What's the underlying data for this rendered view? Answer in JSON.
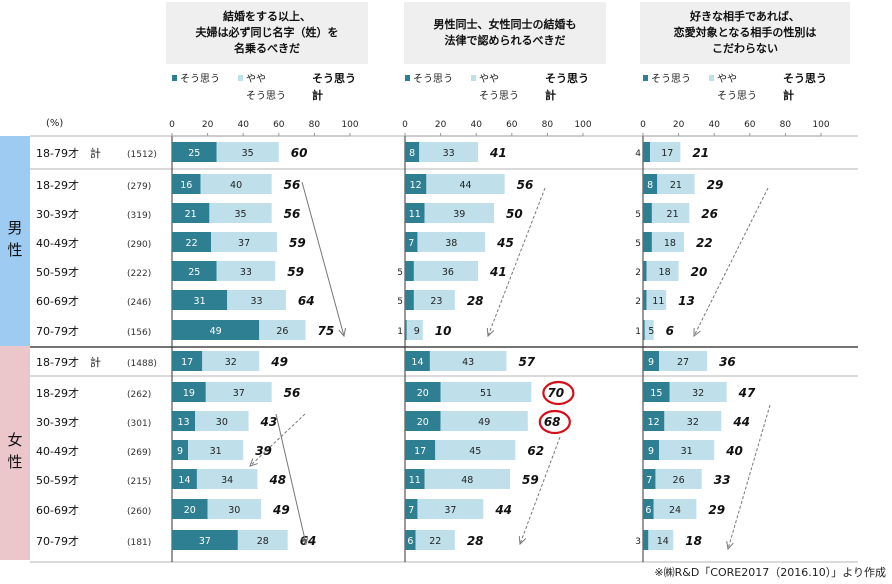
{
  "unit_label": "(%)",
  "source_note": "※㈱R&D「CORE2017（2016.10）」より作成",
  "groups": [
    {
      "label": "男\n性",
      "rows": [
        0,
        1,
        2,
        3,
        4,
        5,
        6
      ]
    },
    {
      "label": "女\n性",
      "rows": [
        7,
        8,
        9,
        10,
        11,
        12,
        13
      ]
    }
  ],
  "colors": {
    "strong": "#2e7f91",
    "weak": "#bfe0ea",
    "male_band": "#9dcbf2",
    "female_band": "#ebc7cc",
    "circle": "#d40f1a"
  },
  "chart_data": {
    "type": "bar",
    "stacked": true,
    "orientation": "horizontal",
    "xlim": [
      0,
      100
    ],
    "xticks": [
      0,
      20,
      40,
      60,
      80,
      100
    ],
    "legend": {
      "strong": "そう思う",
      "weak_line1": "やや",
      "weak_line2": "そう思う",
      "total_line1": "そう思う",
      "total_line2": "計"
    },
    "categories": [
      {
        "label": "18-79才　計",
        "n": "(1512)"
      },
      {
        "label": "18-29才",
        "n": "(279)"
      },
      {
        "label": "30-39才",
        "n": "(319)"
      },
      {
        "label": "40-49才",
        "n": "(290)"
      },
      {
        "label": "50-59才",
        "n": "(222)"
      },
      {
        "label": "60-69才",
        "n": "(246)"
      },
      {
        "label": "70-79才",
        "n": "(156)"
      },
      {
        "label": "18-79才　計",
        "n": "(1488)"
      },
      {
        "label": "18-29才",
        "n": "(262)"
      },
      {
        "label": "30-39才",
        "n": "(301)"
      },
      {
        "label": "40-49才",
        "n": "(269)"
      },
      {
        "label": "50-59才",
        "n": "(215)"
      },
      {
        "label": "60-69才",
        "n": "(260)"
      },
      {
        "label": "70-79才",
        "n": "(181)"
      }
    ],
    "panels": [
      {
        "title_lines": [
          "結婚をする以上、",
          "夫婦は必ず同じ名字（姓）を",
          "名乗るべきだ"
        ],
        "strong": [
          25,
          16,
          21,
          22,
          25,
          31,
          49,
          17,
          19,
          13,
          9,
          14,
          20,
          37
        ],
        "weak": [
          35,
          40,
          35,
          37,
          33,
          33,
          26,
          32,
          37,
          30,
          31,
          34,
          30,
          28
        ],
        "total": [
          60,
          56,
          56,
          59,
          59,
          64,
          75,
          49,
          56,
          43,
          39,
          48,
          49,
          64
        ],
        "circled": []
      },
      {
        "title_lines": [
          "男性同士、女性同士の結婚も",
          "法律で認められるべきだ"
        ],
        "strong": [
          8,
          12,
          11,
          7,
          5,
          5,
          1,
          14,
          20,
          20,
          17,
          11,
          7,
          6
        ],
        "weak": [
          33,
          44,
          39,
          38,
          36,
          23,
          9,
          43,
          51,
          49,
          45,
          48,
          37,
          22
        ],
        "total": [
          41,
          56,
          50,
          45,
          41,
          28,
          10,
          57,
          70,
          68,
          62,
          59,
          44,
          28
        ],
        "circled": [
          8,
          9
        ]
      },
      {
        "title_lines": [
          "好きな相手であれば、",
          "恋愛対象となる相手の性別は",
          "こだわらない"
        ],
        "strong": [
          4,
          8,
          5,
          5,
          2,
          2,
          1,
          9,
          15,
          12,
          9,
          7,
          6,
          3
        ],
        "weak": [
          17,
          21,
          21,
          18,
          18,
          11,
          5,
          27,
          32,
          32,
          31,
          26,
          24,
          14
        ],
        "total": [
          21,
          29,
          26,
          22,
          20,
          13,
          6,
          36,
          47,
          44,
          40,
          33,
          29,
          18
        ],
        "circled": []
      }
    ]
  }
}
